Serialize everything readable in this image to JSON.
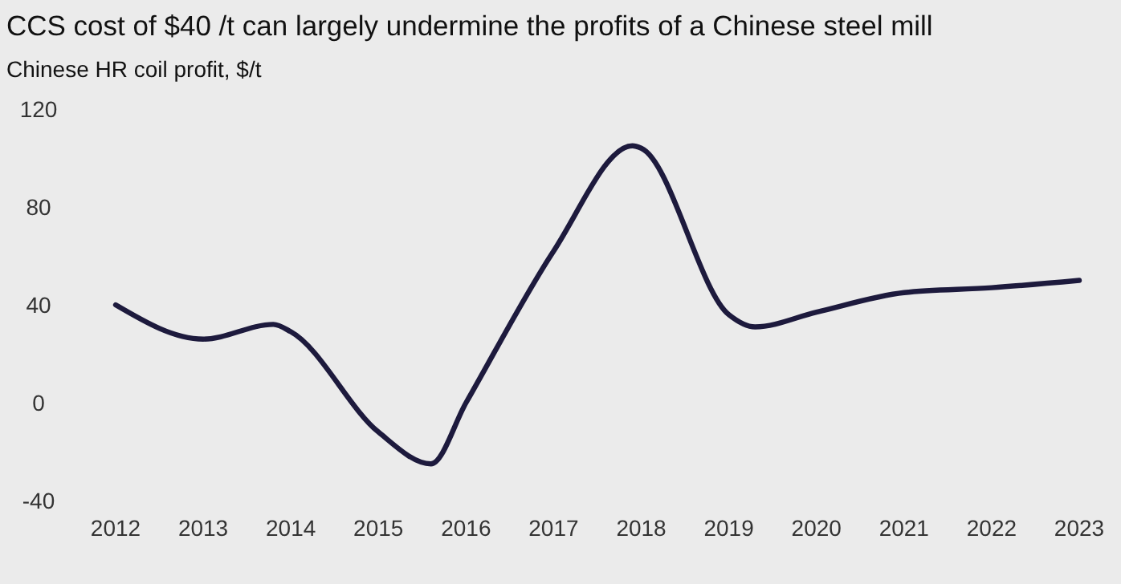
{
  "chart_data": {
    "type": "line",
    "title": "CCS cost of $40 /t can largely undermine the profits of a Chinese steel mill",
    "subtitle": "Chinese HR coil profit, $/t",
    "series": [
      {
        "color": "#1d1a3d",
        "x": [
          2012,
          2013,
          2013.8,
          2014,
          2015,
          2015.6,
          2016,
          2017,
          2017.9,
          2018,
          2019,
          2019.3,
          2020,
          2021,
          2022,
          2023
        ],
        "values": [
          40,
          26,
          32,
          29,
          -12,
          -25,
          0,
          62,
          105,
          104,
          36,
          31,
          37,
          45,
          47,
          50
        ]
      }
    ],
    "xlim": [
      2012,
      2023
    ],
    "xticks": [
      2012,
      2013,
      2014,
      2015,
      2016,
      2017,
      2018,
      2019,
      2020,
      2021,
      2022,
      2023
    ],
    "ylim": [
      -40,
      120
    ],
    "yticks": [
      -40,
      0,
      40,
      80,
      120
    ],
    "grid": false,
    "marker": "none",
    "line_style": "solid"
  }
}
